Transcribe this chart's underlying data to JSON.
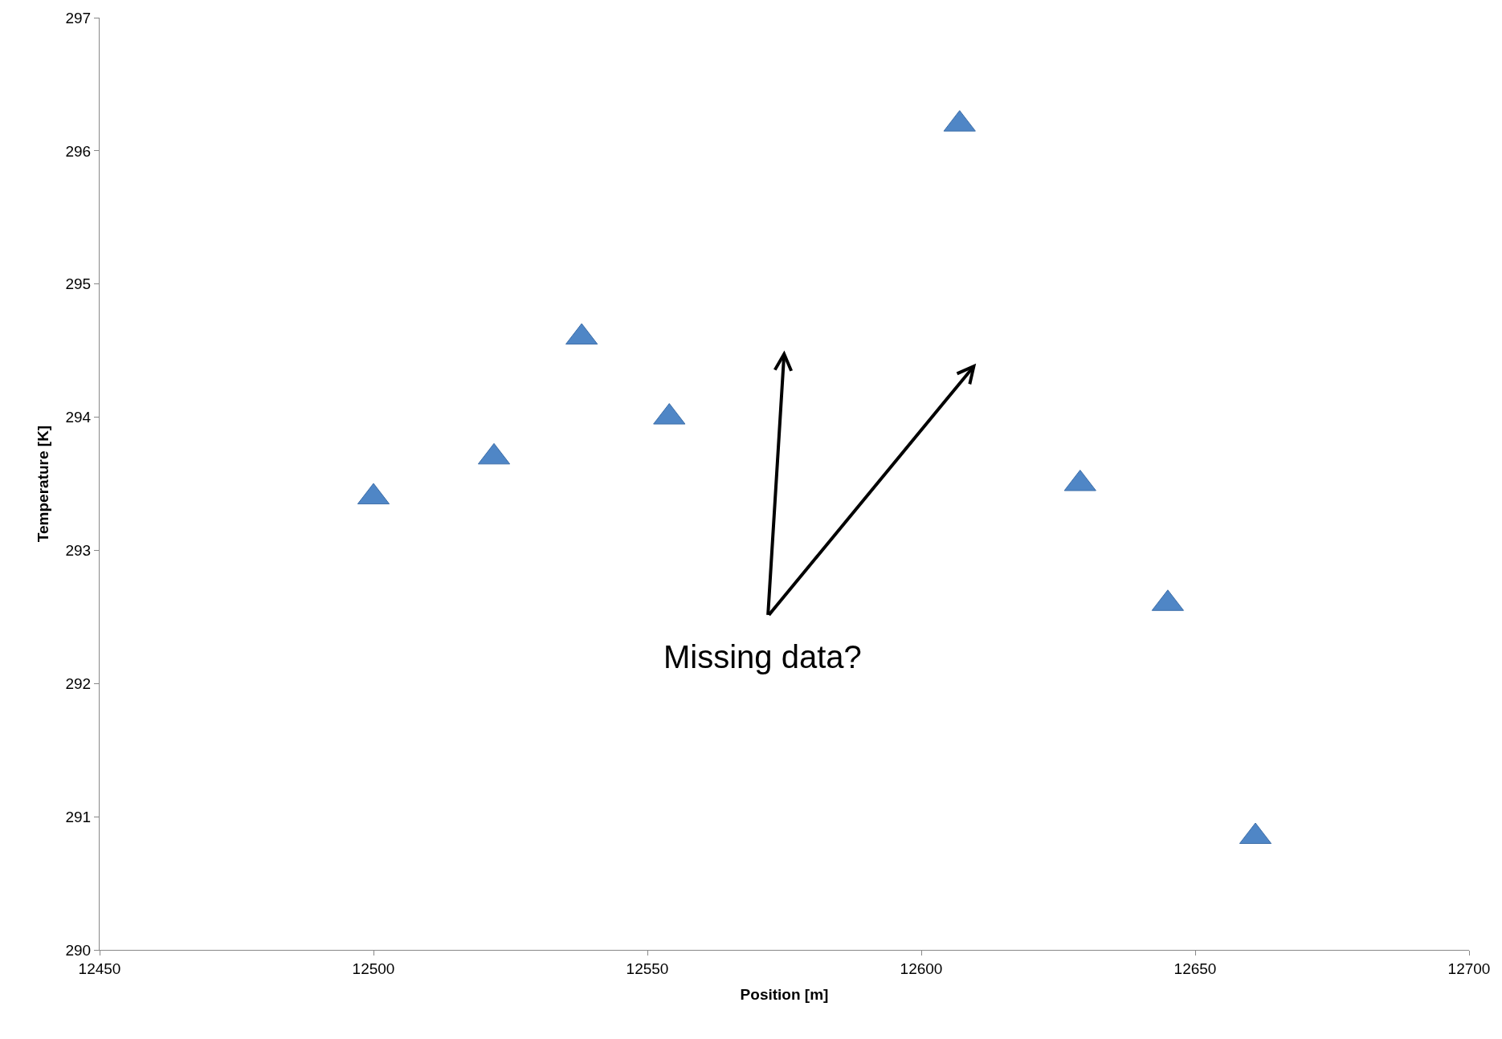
{
  "chart_data": {
    "type": "scatter",
    "xlabel": "Position [m]",
    "ylabel": "Temperature [K]",
    "x": [
      12500,
      12522,
      12538,
      12554,
      12607,
      12629,
      12645,
      12661
    ],
    "series": [
      {
        "color": "#4f86c6",
        "values": [
          293.4,
          293.7,
          294.6,
          294.0,
          296.2,
          293.5,
          292.6,
          290.85
        ]
      }
    ],
    "xlim": [
      12450,
      12700
    ],
    "xticks": [
      12450,
      12500,
      12550,
      12600,
      12650,
      12700
    ],
    "ylim": [
      290,
      297
    ],
    "yticks": [
      290,
      291,
      292,
      293,
      294,
      295,
      296,
      297
    ],
    "marker": "triangle",
    "annotations": [
      "Missing data?"
    ]
  }
}
